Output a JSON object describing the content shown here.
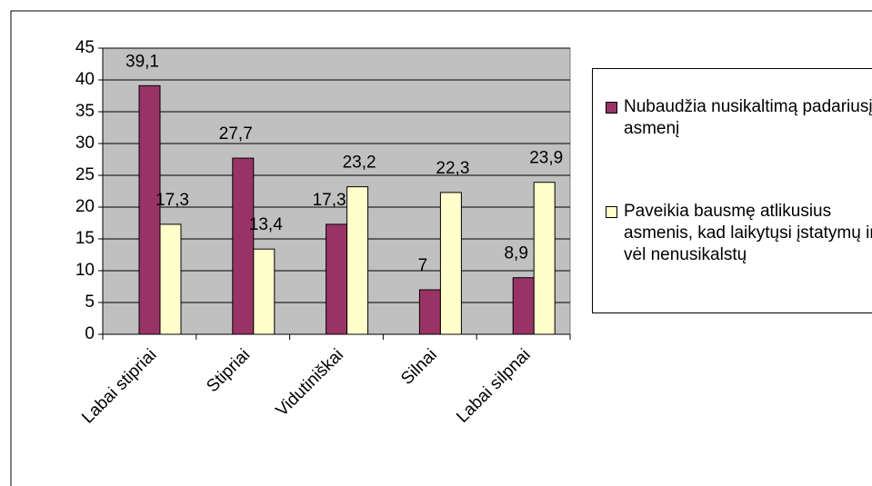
{
  "chart_data": {
    "type": "bar",
    "categories": [
      "Labai stipriai",
      "Stipriai",
      "Vidutiniškai",
      "Silnai",
      "Labai silpnai"
    ],
    "series": [
      {
        "name": "Nubaudžia nusikaltimą padariusį asmenį",
        "color": "#993366",
        "values": [
          39.1,
          27.7,
          17.3,
          7,
          8.9
        ],
        "value_labels": [
          "39,1",
          "27,7",
          "17,3",
          "7",
          "8,9"
        ]
      },
      {
        "name": "Paveikia bausmę atlikusius asmenis, kad laikytųsi įstatymų ir vėl nenusikalstų",
        "color": "#ffffcc",
        "values": [
          17.3,
          13.4,
          23.2,
          22.3,
          23.9
        ],
        "value_labels": [
          "17,3",
          "13,4",
          "23,2",
          "22,3",
          "23,9"
        ]
      }
    ],
    "ylim": [
      0,
      45
    ],
    "yticks": [
      0,
      5,
      10,
      15,
      20,
      25,
      30,
      35,
      40,
      45
    ],
    "grid": true
  }
}
